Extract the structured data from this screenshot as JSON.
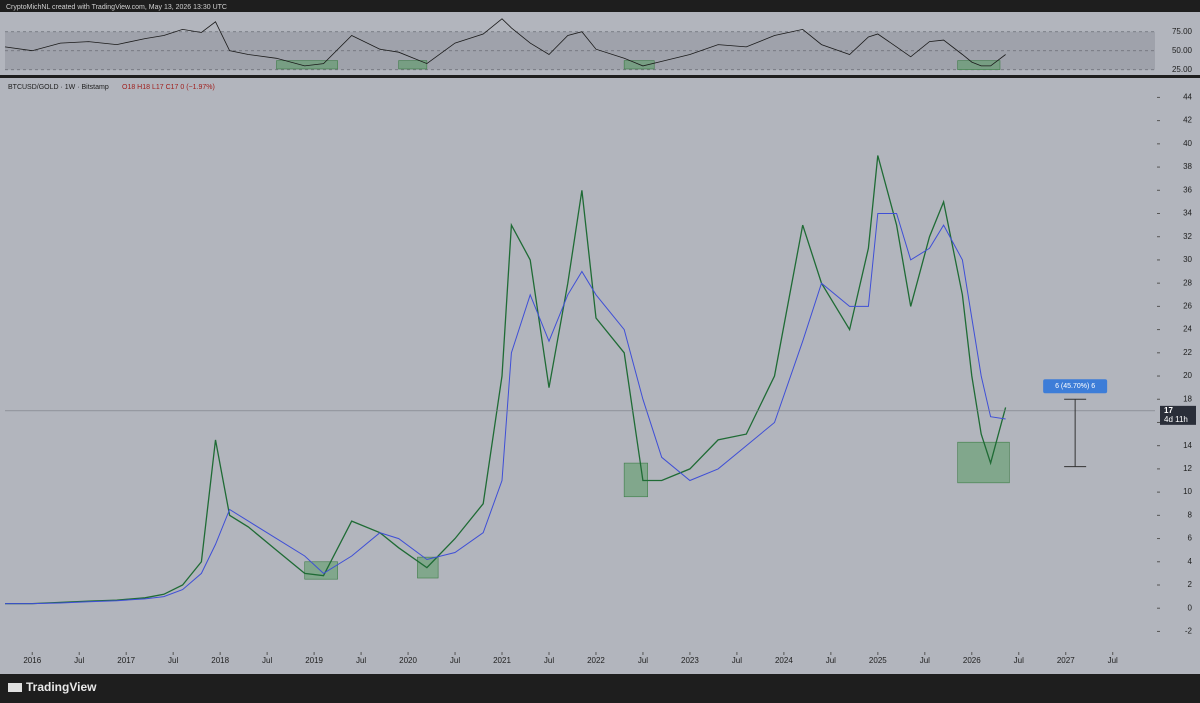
{
  "header": "CryptoMichNL created with TradingView.com, May 13, 2026 13:30 UTC",
  "footer": "TradingView",
  "chart_data": [
    {
      "type": "line",
      "x": [
        2015.71,
        2016.0,
        2016.3,
        2016.6,
        2016.9,
        2017.2,
        2017.4,
        2017.6,
        2017.8,
        2017.95,
        2018.1,
        2018.3,
        2018.6,
        2018.9,
        2019.1,
        2019.4,
        2019.7,
        2019.9,
        2020.2,
        2020.5,
        2020.8,
        2021.0,
        2021.1,
        2021.3,
        2021.5,
        2021.7,
        2021.85,
        2022.0,
        2022.3,
        2022.5,
        2022.7,
        2023.0,
        2023.3,
        2023.6,
        2023.9,
        2024.2,
        2024.4,
        2024.7,
        2024.9,
        2025.0,
        2025.2,
        2025.35,
        2025.55,
        2025.7,
        2025.9,
        2026.0,
        2026.1,
        2026.2,
        2026.36
      ],
      "series": [
        {
          "color": "#1a1a1a",
          "values": [
            55,
            50,
            60,
            62,
            58,
            66,
            70,
            78,
            74,
            88,
            50,
            45,
            40,
            30,
            33,
            70,
            52,
            48,
            33,
            60,
            72,
            92,
            80,
            60,
            45,
            70,
            75,
            52,
            40,
            30,
            36,
            45,
            58,
            55,
            70,
            78,
            58,
            45,
            68,
            72,
            55,
            42,
            62,
            64,
            45,
            35,
            30,
            30,
            45
          ]
        }
      ],
      "ylim": [
        22,
        97
      ],
      "yticks": [
        {
          "value": 75,
          "label": "75.00"
        },
        {
          "value": 50,
          "label": "50.00"
        },
        {
          "value": 25,
          "label": "25.00"
        }
      ],
      "xlim": [
        2015.71,
        2027.95
      ],
      "zones": [
        {
          "x": [
            2018.6,
            2019.25
          ],
          "y": [
            26,
            37
          ]
        },
        {
          "x": [
            2019.9,
            2020.2
          ],
          "y": [
            26,
            37
          ]
        },
        {
          "x": [
            2022.3,
            2022.62
          ],
          "y": [
            26,
            37
          ]
        },
        {
          "x": [
            2025.85,
            2026.3
          ],
          "y": [
            25,
            37
          ]
        }
      ]
    },
    {
      "type": "line",
      "symbol": "BTCUSD/GOLD · 1W · Bitstamp",
      "ohlc": "O18 H18 L17 C17 0 (−1.97%)",
      "x": [
        2015.71,
        2016.0,
        2016.3,
        2016.6,
        2016.9,
        2017.2,
        2017.4,
        2017.6,
        2017.8,
        2017.95,
        2018.1,
        2018.3,
        2018.6,
        2018.9,
        2019.1,
        2019.4,
        2019.7,
        2019.9,
        2020.2,
        2020.5,
        2020.8,
        2021.0,
        2021.1,
        2021.3,
        2021.5,
        2021.7,
        2021.85,
        2022.0,
        2022.3,
        2022.5,
        2022.7,
        2023.0,
        2023.3,
        2023.6,
        2023.9,
        2024.2,
        2024.4,
        2024.7,
        2024.9,
        2025.0,
        2025.2,
        2025.35,
        2025.55,
        2025.7,
        2025.9,
        2026.0,
        2026.1,
        2026.2,
        2026.36
      ],
      "series": [
        {
          "color": "#1f6b35",
          "values": [
            0.4,
            0.4,
            0.5,
            0.6,
            0.7,
            0.9,
            1.2,
            2.0,
            4.0,
            14.5,
            8.0,
            7.0,
            5.0,
            3.0,
            2.8,
            7.5,
            6.5,
            5.2,
            3.5,
            6.0,
            9.0,
            20,
            33,
            30,
            19,
            28,
            36,
            25,
            22,
            11,
            11,
            12,
            14.5,
            15,
            20,
            33,
            28,
            24,
            31,
            39,
            33,
            26,
            32,
            35,
            27,
            20,
            15,
            12.5,
            17.3
          ]
        },
        {
          "color": "#3f4fd6",
          "values": [
            0.4,
            0.4,
            0.45,
            0.55,
            0.65,
            0.8,
            1.0,
            1.6,
            3.0,
            5.5,
            8.5,
            7.5,
            6.0,
            4.5,
            3.0,
            4.5,
            6.5,
            6.0,
            4.2,
            4.8,
            6.5,
            11,
            22,
            27,
            23,
            27,
            29,
            27,
            24,
            18,
            13,
            11,
            12,
            14,
            16,
            23,
            28,
            26,
            26,
            34,
            34,
            30,
            31,
            33,
            30,
            25,
            20,
            16.5,
            16.3
          ]
        }
      ],
      "ylim": [
        -3.6,
        45.5
      ],
      "yticks": [
        -2,
        0,
        2,
        4,
        6,
        8,
        10,
        12,
        14,
        16,
        18,
        20,
        22,
        24,
        26,
        28,
        30,
        32,
        34,
        36,
        38,
        40,
        42,
        44
      ],
      "xlim": [
        2015.71,
        2027.95
      ],
      "xticks": [
        {
          "value": 2016,
          "label": "2016"
        },
        {
          "value": 2016.5,
          "label": "Jul"
        },
        {
          "value": 2017,
          "label": "2017"
        },
        {
          "value": 2017.5,
          "label": "Jul"
        },
        {
          "value": 2018,
          "label": "2018"
        },
        {
          "value": 2018.5,
          "label": "Jul"
        },
        {
          "value": 2019,
          "label": "2019"
        },
        {
          "value": 2019.5,
          "label": "Jul"
        },
        {
          "value": 2020,
          "label": "2020"
        },
        {
          "value": 2020.5,
          "label": "Jul"
        },
        {
          "value": 2021,
          "label": "2021"
        },
        {
          "value": 2021.5,
          "label": "Jul"
        },
        {
          "value": 2022,
          "label": "2022"
        },
        {
          "value": 2022.5,
          "label": "Jul"
        },
        {
          "value": 2023,
          "label": "2023"
        },
        {
          "value": 2023.5,
          "label": "Jul"
        },
        {
          "value": 2024,
          "label": "2024"
        },
        {
          "value": 2024.5,
          "label": "Jul"
        },
        {
          "value": 2025,
          "label": "2025"
        },
        {
          "value": 2025.5,
          "label": "Jul"
        },
        {
          "value": 2026,
          "label": "2026"
        },
        {
          "value": 2026.5,
          "label": "Jul"
        },
        {
          "value": 2027,
          "label": "2027"
        },
        {
          "value": 2027.5,
          "label": "Jul"
        }
      ],
      "last_value": 17,
      "countdown": "4d 11h",
      "measure": {
        "label": "6 (45.70%) 6",
        "x": 2027.1,
        "from": 12.2,
        "to": 18
      },
      "zones": [
        {
          "x": [
            2018.9,
            2019.25
          ],
          "y": [
            2.5,
            4
          ]
        },
        {
          "x": [
            2020.1,
            2020.32
          ],
          "y": [
            2.6,
            4.4
          ]
        },
        {
          "x": [
            2022.3,
            2022.55
          ],
          "y": [
            9.6,
            12.5
          ]
        },
        {
          "x": [
            2025.85,
            2026.4
          ],
          "y": [
            10.8,
            14.3
          ]
        }
      ]
    }
  ]
}
